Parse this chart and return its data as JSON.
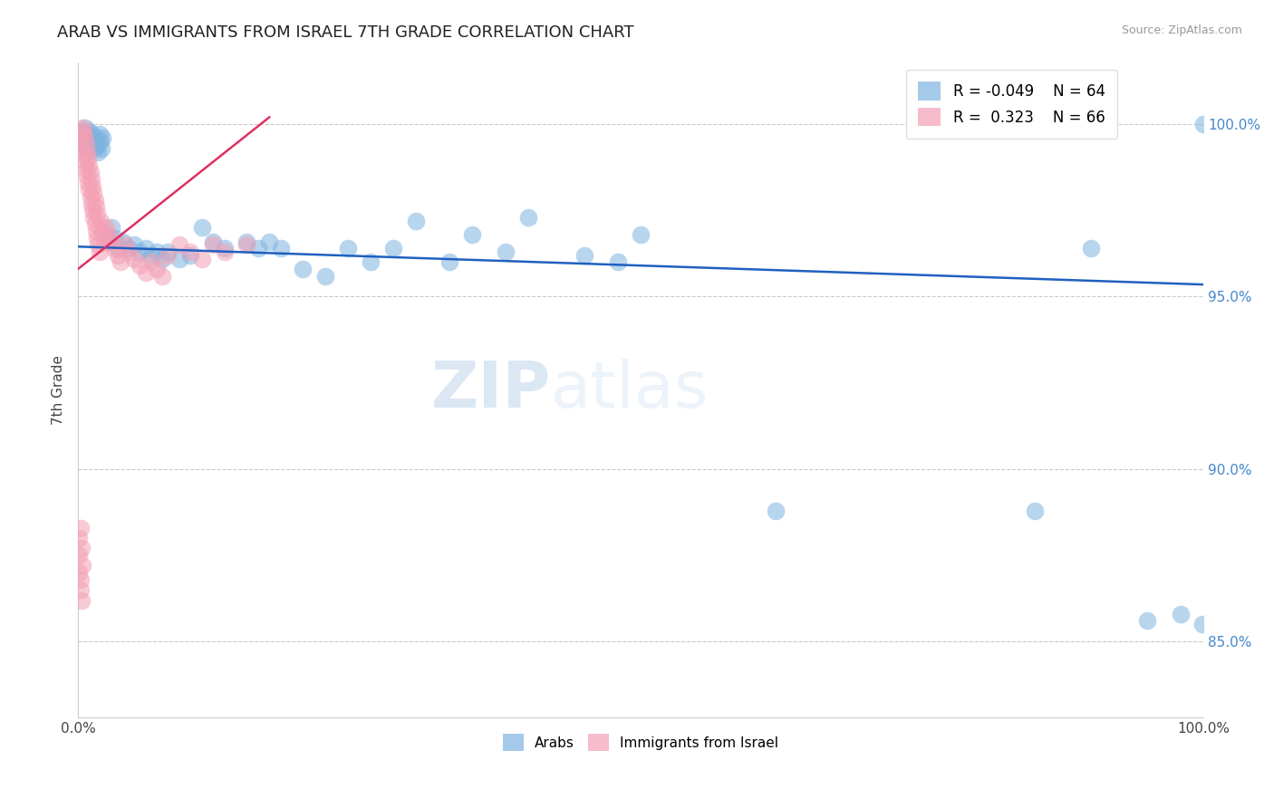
{
  "title": "ARAB VS IMMIGRANTS FROM ISRAEL 7TH GRADE CORRELATION CHART",
  "source_text": "Source: ZipAtlas.com",
  "ylabel": "7th Grade",
  "ytick_labels": [
    "85.0%",
    "90.0%",
    "95.0%",
    "100.0%"
  ],
  "ytick_values": [
    0.85,
    0.9,
    0.95,
    1.0
  ],
  "xlim": [
    0.0,
    1.0
  ],
  "ylim": [
    0.828,
    1.018
  ],
  "legend_blue_r": "-0.049",
  "legend_blue_n": "64",
  "legend_pink_r": "0.323",
  "legend_pink_n": "66",
  "blue_color": "#7eb3e0",
  "pink_color": "#f4a0b5",
  "blue_line_color": "#2060c0",
  "pink_line_color": "#e03060",
  "watermark_line1": "ZIP",
  "watermark_line2": "atlas",
  "blue_line_x": [
    0.0,
    1.0
  ],
  "blue_line_y": [
    0.9645,
    0.9535
  ],
  "pink_line_x": [
    0.0,
    0.17
  ],
  "pink_line_y": [
    0.958,
    1.002
  ],
  "blue_points_x": [
    0.002,
    0.003,
    0.004,
    0.005,
    0.006,
    0.007,
    0.008,
    0.009,
    0.01,
    0.011,
    0.012,
    0.013,
    0.014,
    0.015,
    0.016,
    0.017,
    0.018,
    0.019,
    0.02,
    0.021,
    0.022,
    0.025,
    0.028,
    0.03,
    0.033,
    0.036,
    0.04,
    0.045,
    0.05,
    0.055,
    0.06,
    0.065,
    0.07,
    0.075,
    0.08,
    0.09,
    0.1,
    0.11,
    0.12,
    0.13,
    0.15,
    0.16,
    0.17,
    0.18,
    0.2,
    0.22,
    0.24,
    0.26,
    0.28,
    0.3,
    0.33,
    0.35,
    0.38,
    0.4,
    0.45,
    0.48,
    0.5,
    0.62,
    0.85,
    0.9,
    0.95,
    0.98,
    1.0,
    0.999
  ],
  "blue_points_y": [
    0.997,
    0.998,
    0.996,
    0.994,
    0.999,
    0.997,
    0.995,
    0.993,
    0.998,
    0.996,
    0.994,
    0.997,
    0.995,
    0.993,
    0.996,
    0.994,
    0.992,
    0.997,
    0.995,
    0.993,
    0.996,
    0.968,
    0.966,
    0.97,
    0.967,
    0.964,
    0.966,
    0.964,
    0.965,
    0.963,
    0.964,
    0.962,
    0.963,
    0.961,
    0.963,
    0.961,
    0.962,
    0.97,
    0.966,
    0.964,
    0.966,
    0.964,
    0.966,
    0.964,
    0.958,
    0.956,
    0.964,
    0.96,
    0.964,
    0.972,
    0.96,
    0.968,
    0.963,
    0.973,
    0.962,
    0.96,
    0.968,
    0.888,
    0.888,
    0.964,
    0.856,
    0.858,
    1.0,
    0.855
  ],
  "pink_points_x": [
    0.001,
    0.002,
    0.003,
    0.004,
    0.005,
    0.005,
    0.006,
    0.006,
    0.007,
    0.007,
    0.008,
    0.008,
    0.009,
    0.009,
    0.01,
    0.01,
    0.011,
    0.011,
    0.012,
    0.012,
    0.013,
    0.013,
    0.014,
    0.014,
    0.015,
    0.015,
    0.016,
    0.016,
    0.017,
    0.017,
    0.018,
    0.019,
    0.02,
    0.021,
    0.022,
    0.023,
    0.025,
    0.027,
    0.03,
    0.032,
    0.035,
    0.038,
    0.042,
    0.045,
    0.05,
    0.055,
    0.06,
    0.065,
    0.07,
    0.075,
    0.08,
    0.09,
    0.1,
    0.11,
    0.12,
    0.13,
    0.002,
    0.003,
    0.001,
    0.004,
    0.001,
    0.002,
    0.15,
    0.001,
    0.002,
    0.003
  ],
  "pink_points_y": [
    0.995,
    0.997,
    0.993,
    0.999,
    0.991,
    0.998,
    0.989,
    0.996,
    0.987,
    0.994,
    0.985,
    0.992,
    0.983,
    0.99,
    0.981,
    0.988,
    0.979,
    0.986,
    0.977,
    0.984,
    0.975,
    0.982,
    0.973,
    0.98,
    0.971,
    0.978,
    0.969,
    0.976,
    0.967,
    0.974,
    0.965,
    0.963,
    0.972,
    0.97,
    0.968,
    0.966,
    0.97,
    0.968,
    0.966,
    0.964,
    0.962,
    0.96,
    0.965,
    0.963,
    0.961,
    0.959,
    0.957,
    0.96,
    0.958,
    0.956,
    0.962,
    0.965,
    0.963,
    0.961,
    0.965,
    0.963,
    0.883,
    0.877,
    0.88,
    0.872,
    0.875,
    0.868,
    0.965,
    0.87,
    0.865,
    0.862
  ]
}
